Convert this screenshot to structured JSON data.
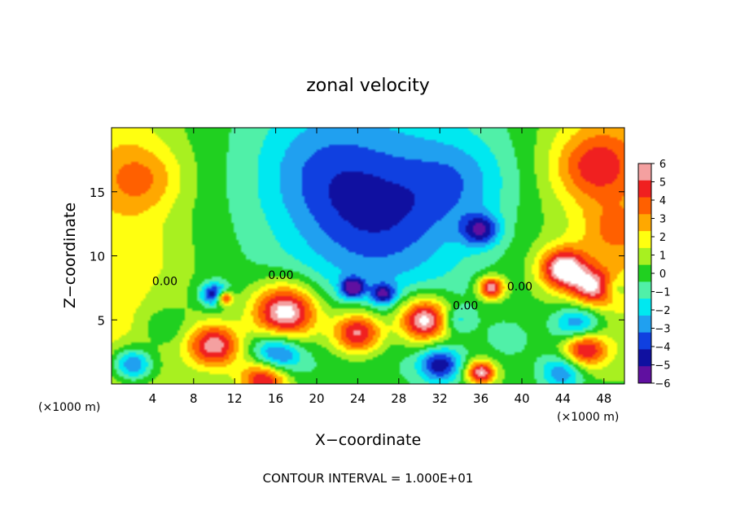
{
  "chart_data": {
    "type": "heatmap",
    "title": "zonal velocity",
    "xlabel": "X−coordinate",
    "ylabel": "Z−coordinate",
    "x_unit_left": "(×1000 m)",
    "x_unit_right": "(×1000 m)",
    "footer": "CONTOUR INTERVAL = 1.000E+01",
    "xlim": [
      0,
      50
    ],
    "ylim": [
      0,
      20
    ],
    "x_ticks": [
      4,
      8,
      12,
      16,
      20,
      24,
      28,
      32,
      36,
      40,
      44,
      48
    ],
    "y_ticks": [
      5,
      10,
      15
    ],
    "contour_labels": [
      {
        "text": "0.00",
        "x": 5.2,
        "y": 7.7
      },
      {
        "text": "0.00",
        "x": 16.5,
        "y": 8.2
      },
      {
        "text": "0.00",
        "x": 34.5,
        "y": 5.8
      },
      {
        "text": "0.00",
        "x": 39.8,
        "y": 7.3
      }
    ],
    "colorbar": {
      "levels": [
        6,
        5,
        4,
        3,
        2,
        1,
        0,
        -1,
        -2,
        -3,
        -4,
        -5,
        -6
      ],
      "labels": [
        "6",
        "5",
        "4",
        "3",
        "2",
        "1",
        "0",
        "−1",
        "−2",
        "−3",
        "−4",
        "−5",
        "−6"
      ],
      "colors": [
        "#f4a0a0",
        "#f02020",
        "#ff6000",
        "#ffa800",
        "#ffff10",
        "#a8f020",
        "#20d020",
        "#50f0a8",
        "#00e8f0",
        "#20a0f0",
        "#1040e0",
        "#1010a0",
        "#6010a0"
      ]
    },
    "blobs": [
      {
        "x": 3,
        "y": 16,
        "v": 2.5,
        "r": 4
      },
      {
        "x": 47,
        "y": 17,
        "v": 3.5,
        "r": 4
      },
      {
        "x": 49,
        "y": 12,
        "v": 1.8,
        "r": 3
      },
      {
        "x": 26,
        "y": 13,
        "v": -3.0,
        "r": 8
      },
      {
        "x": 20,
        "y": 17,
        "v": -1.5,
        "r": 6
      },
      {
        "x": 34,
        "y": 16,
        "v": -1.8,
        "r": 5
      },
      {
        "x": 36,
        "y": 12,
        "v": -4.5,
        "r": 1.8
      },
      {
        "x": 4,
        "y": 10,
        "v": 0.6,
        "r": 4
      },
      {
        "x": 44,
        "y": 9,
        "v": 6.5,
        "r": 2.3
      },
      {
        "x": 47,
        "y": 7.5,
        "v": 5.0,
        "r": 2.2
      },
      {
        "x": 17,
        "y": 5.6,
        "v": 7.5,
        "r": 3.3
      },
      {
        "x": 10,
        "y": 7,
        "v": -5.5,
        "r": 1.3
      },
      {
        "x": 11,
        "y": 6.7,
        "v": 6.5,
        "r": 0.8
      },
      {
        "x": 5,
        "y": 4.5,
        "v": -1.5,
        "r": 2
      },
      {
        "x": 2,
        "y": 1.5,
        "v": -5.0,
        "r": 2
      },
      {
        "x": 10,
        "y": 3,
        "v": 6.0,
        "r": 2.5
      },
      {
        "x": 16,
        "y": 2.2,
        "v": -5.5,
        "r": 2.4
      },
      {
        "x": 15,
        "y": 0.5,
        "v": 6.5,
        "r": 2.4
      },
      {
        "x": 24,
        "y": 4,
        "v": 6.5,
        "r": 2.5
      },
      {
        "x": 23.5,
        "y": 7.5,
        "v": -6.0,
        "r": 1.1
      },
      {
        "x": 26.5,
        "y": 7,
        "v": -4.5,
        "r": 1.2
      },
      {
        "x": 30.5,
        "y": 5,
        "v": 7.5,
        "r": 2.6
      },
      {
        "x": 32,
        "y": 1.5,
        "v": -5.0,
        "r": 2
      },
      {
        "x": 33.5,
        "y": 5,
        "v": -2.5,
        "r": 1.5
      },
      {
        "x": 37,
        "y": 7.5,
        "v": 6.5,
        "r": 1.3
      },
      {
        "x": 36,
        "y": 0.9,
        "v": 6.5,
        "r": 1.4
      },
      {
        "x": 39,
        "y": 3.5,
        "v": -1.0,
        "r": 2.5
      },
      {
        "x": 46,
        "y": 2.8,
        "v": 6.5,
        "r": 2.2
      },
      {
        "x": 45.5,
        "y": 4.5,
        "v": -5.0,
        "r": 2.4
      },
      {
        "x": 44,
        "y": 1.0,
        "v": -4.0,
        "r": 2.2
      },
      {
        "x": 49,
        "y": 7.5,
        "v": -2.0,
        "r": 1.3
      }
    ]
  }
}
